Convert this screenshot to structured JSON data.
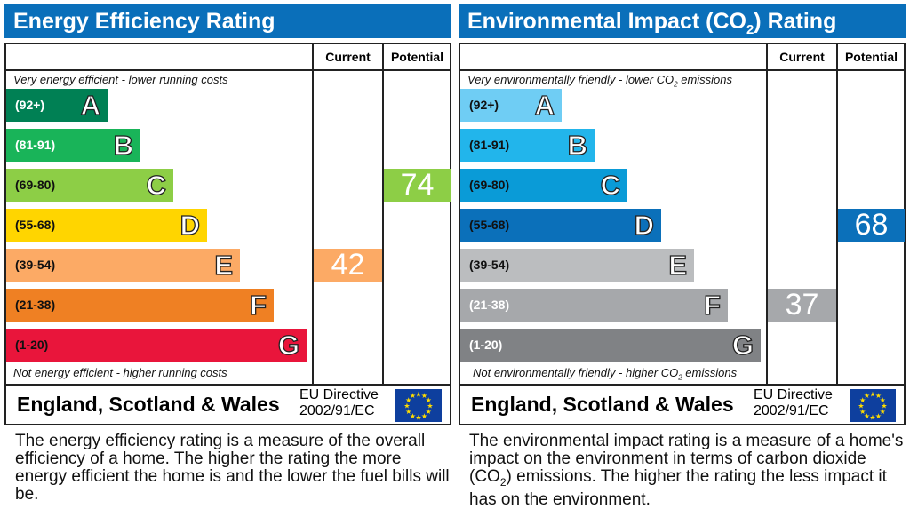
{
  "chart_data": [
    {
      "type": "bar",
      "title": "Energy Efficiency Rating",
      "columns": [
        "Current",
        "Potential"
      ],
      "top_note": "Very energy efficient - lower running costs",
      "bottom_note": "Not energy efficient - higher running costs",
      "bands": [
        {
          "letter": "A",
          "range": "(92+)",
          "color": "#008054",
          "text": "#ffffff"
        },
        {
          "letter": "B",
          "range": "(81-91)",
          "color": "#19b459",
          "text": "#ffffff"
        },
        {
          "letter": "C",
          "range": "(69-80)",
          "color": "#8dce46",
          "text": "#111111"
        },
        {
          "letter": "D",
          "range": "(55-68)",
          "color": "#ffd500",
          "text": "#111111"
        },
        {
          "letter": "E",
          "range": "(39-54)",
          "color": "#fcaa65",
          "text": "#111111"
        },
        {
          "letter": "F",
          "range": "(21-38)",
          "color": "#ef8023",
          "text": "#111111"
        },
        {
          "letter": "G",
          "range": "(1-20)",
          "color": "#e9153b",
          "text": "#111111"
        }
      ],
      "current": {
        "value": "42",
        "band": "E"
      },
      "potential": {
        "value": "74",
        "band": "C"
      },
      "region": "England, Scotland & Wales",
      "directive": [
        "EU Directive",
        "2002/91/EC"
      ],
      "description": "The energy efficiency rating is a measure of the overall efficiency of a home. The higher the rating the more energy efficient the home is and the lower the fuel bills will be."
    },
    {
      "type": "bar",
      "title": "Environmental Impact (CO2) Rating",
      "columns": [
        "Current",
        "Potential"
      ],
      "top_note": "Very environmentally friendly - lower CO2 emissions",
      "bottom_note": "Not environmentally friendly - higher CO2 emissions",
      "bands": [
        {
          "letter": "A",
          "range": "(92+)",
          "color": "#6fcdf4",
          "text": "#111111"
        },
        {
          "letter": "B",
          "range": "(81-91)",
          "color": "#22b5eb",
          "text": "#111111"
        },
        {
          "letter": "C",
          "range": "(69-80)",
          "color": "#0a9bd7",
          "text": "#111111"
        },
        {
          "letter": "D",
          "range": "(55-68)",
          "color": "#0b70ba",
          "text": "#111111"
        },
        {
          "letter": "E",
          "range": "(39-54)",
          "color": "#bbbdbf",
          "text": "#111111"
        },
        {
          "letter": "F",
          "range": "(21-38)",
          "color": "#a6a8ab",
          "text": "#ffffff"
        },
        {
          "letter": "G",
          "range": "(1-20)",
          "color": "#808285",
          "text": "#ffffff"
        }
      ],
      "current": {
        "value": "37",
        "band": "F"
      },
      "potential": {
        "value": "68",
        "band": "D"
      },
      "region": "England, Scotland & Wales",
      "directive": [
        "EU Directive",
        "2002/91/EC"
      ],
      "description": "The environmental impact rating is a measure of a home's impact on the environment in terms of carbon dioxide (CO2) emissions. The higher the rating the less impact it has on the environment."
    }
  ]
}
